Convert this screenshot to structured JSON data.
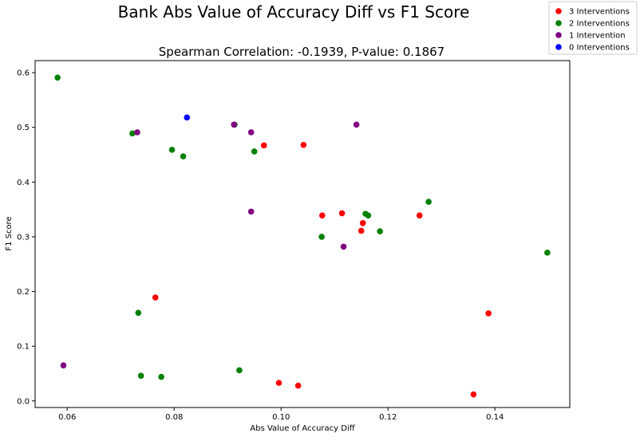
{
  "chart_data": {
    "type": "scatter",
    "title": "Bank Abs Value of Accuracy Diff vs F1 Score",
    "subtitle": "Spearman Correlation: -0.1939, P-value: 0.1867",
    "xlabel": "Abs Value of Accuracy Diff",
    "ylabel": "F1 Score",
    "xlim": [
      0.054,
      0.154
    ],
    "ylim": [
      -0.012,
      0.622
    ],
    "xticks": [
      0.06,
      0.08,
      0.1,
      0.12,
      0.14
    ],
    "xtick_labels": [
      "0.06",
      "0.08",
      "0.10",
      "0.12",
      "0.14"
    ],
    "yticks": [
      0.0,
      0.1,
      0.2,
      0.3,
      0.4,
      0.5,
      0.6
    ],
    "ytick_labels": [
      "0.0",
      "0.1",
      "0.2",
      "0.3",
      "0.4",
      "0.5",
      "0.6"
    ],
    "grid": false,
    "legend_position": "top-right",
    "series": [
      {
        "name": "3 Interventions",
        "color": "#ff0000",
        "points": [
          [
            0.0765,
            0.189
          ],
          [
            0.0968,
            0.467
          ],
          [
            0.1042,
            0.468
          ],
          [
            0.1077,
            0.339
          ],
          [
            0.1114,
            0.343
          ],
          [
            0.115,
            0.311
          ],
          [
            0.1153,
            0.325
          ],
          [
            0.1259,
            0.339
          ],
          [
            0.0996,
            0.033
          ],
          [
            0.1032,
            0.028
          ],
          [
            0.1388,
            0.16
          ],
          [
            0.136,
            0.012
          ]
        ]
      },
      {
        "name": "2 Interventions",
        "color": "#008000",
        "points": [
          [
            0.0582,
            0.591
          ],
          [
            0.0722,
            0.489
          ],
          [
            0.0796,
            0.459
          ],
          [
            0.0817,
            0.447
          ],
          [
            0.0913,
            0.505
          ],
          [
            0.095,
            0.456
          ],
          [
            0.1076,
            0.3
          ],
          [
            0.1158,
            0.342
          ],
          [
            0.1163,
            0.339
          ],
          [
            0.1185,
            0.31
          ],
          [
            0.1276,
            0.364
          ],
          [
            0.1498,
            0.271
          ],
          [
            0.0733,
            0.161
          ],
          [
            0.0738,
            0.046
          ],
          [
            0.0776,
            0.044
          ],
          [
            0.0922,
            0.056
          ]
        ]
      },
      {
        "name": "1 Intervention",
        "color": "#800080",
        "points": [
          [
            0.0731,
            0.491
          ],
          [
            0.0912,
            0.505
          ],
          [
            0.0944,
            0.491
          ],
          [
            0.1141,
            0.505
          ],
          [
            0.0944,
            0.346
          ],
          [
            0.1117,
            0.282
          ],
          [
            0.0593,
            0.065
          ]
        ]
      },
      {
        "name": "0 Interventions",
        "color": "#0000ff",
        "points": [
          [
            0.0824,
            0.518
          ]
        ]
      }
    ]
  }
}
